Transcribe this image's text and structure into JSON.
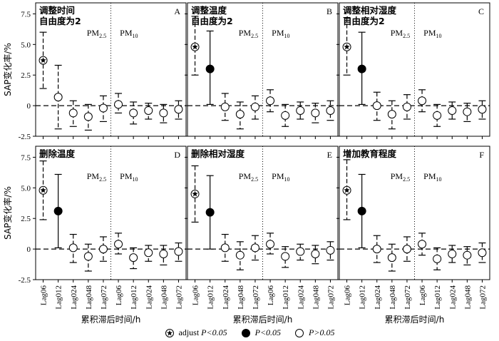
{
  "figure": {
    "xlabel": "累积滞后时间/h",
    "ylabel": "SAP变化率/%",
    "group_labels": {
      "pm25_prefix": "PM",
      "pm25_sub": "2.5",
      "pm10_prefix": "PM",
      "pm10_sub": "10"
    },
    "legend": [
      {
        "marker": "star-circle",
        "prefix": "adjust ",
        "text": "P<0.05"
      },
      {
        "marker": "filled-circle",
        "prefix": "",
        "text": "P<0.05"
      },
      {
        "marker": "open-circle",
        "prefix": "",
        "text": "P>0.05"
      }
    ]
  },
  "chart_data": [
    {
      "type": "scatter",
      "panel": "A",
      "title_lines": [
        "调整时间",
        "自由度为2"
      ],
      "categories": [
        "Lag06",
        "Lag012",
        "Lag024",
        "Lag048",
        "Lag072",
        "Lag06",
        "Lag012",
        "Lag024",
        "Lag048",
        "Lag072"
      ],
      "ylim": [
        -2.5,
        8.4
      ],
      "yticks": [
        "-2.5",
        "0",
        "2.5",
        "5.0",
        "7.5"
      ],
      "series": [
        {
          "name": "PM2.5",
          "points": [
            {
              "x": "Lag06",
              "y": 3.7,
              "low": 1.4,
              "high": 6.0,
              "sig": "adjust"
            },
            {
              "x": "Lag012",
              "y": 0.7,
              "low": -1.9,
              "high": 3.3,
              "sig": "ns"
            },
            {
              "x": "Lag024",
              "y": -0.6,
              "low": -1.7,
              "high": 0.4,
              "sig": "ns"
            },
            {
              "x": "Lag048",
              "y": -0.9,
              "low": -2.0,
              "high": 0.1,
              "sig": "ns"
            },
            {
              "x": "Lag072",
              "y": -0.2,
              "low": -1.3,
              "high": 0.8,
              "sig": "ns"
            }
          ]
        },
        {
          "name": "PM10",
          "points": [
            {
              "x": "Lag06",
              "y": 0.1,
              "low": -0.6,
              "high": 1.0,
              "sig": "ns"
            },
            {
              "x": "Lag012",
              "y": -0.6,
              "low": -1.5,
              "high": 0.3,
              "sig": "ns"
            },
            {
              "x": "Lag024",
              "y": -0.4,
              "low": -1.1,
              "high": 0.2,
              "sig": "ns"
            },
            {
              "x": "Lag048",
              "y": -0.6,
              "low": -1.4,
              "high": 0.1,
              "sig": "ns"
            },
            {
              "x": "Lag072",
              "y": -0.3,
              "low": -1.1,
              "high": 0.4,
              "sig": "ns"
            }
          ]
        }
      ]
    },
    {
      "type": "scatter",
      "panel": "B",
      "title_lines": [
        "调整温度",
        "自由度为2"
      ],
      "categories": [
        "Lag06",
        "Lag012",
        "Lag024",
        "Lag048",
        "Lag072",
        "Lag06",
        "Lag012",
        "Lag024",
        "Lag048",
        "Lag072"
      ],
      "ylim": [
        -2.5,
        8.4
      ],
      "yticks": [
        "-2.5",
        "0",
        "2.5",
        "5.0",
        "7.5"
      ],
      "series": [
        {
          "name": "PM2.5",
          "points": [
            {
              "x": "Lag06",
              "y": 4.8,
              "low": 2.5,
              "high": 7.3,
              "sig": "adjust"
            },
            {
              "x": "Lag012",
              "y": 3.0,
              "low": 0.1,
              "high": 6.1,
              "sig": "sig"
            },
            {
              "x": "Lag024",
              "y": -0.1,
              "low": -1.2,
              "high": 1.0,
              "sig": "ns"
            },
            {
              "x": "Lag048",
              "y": -0.7,
              "low": -1.9,
              "high": 0.3,
              "sig": "ns"
            },
            {
              "x": "Lag072",
              "y": -0.1,
              "low": -1.1,
              "high": 0.8,
              "sig": "ns"
            }
          ]
        },
        {
          "name": "PM10",
          "points": [
            {
              "x": "Lag06",
              "y": 0.4,
              "low": -0.5,
              "high": 1.3,
              "sig": "ns"
            },
            {
              "x": "Lag012",
              "y": -0.8,
              "low": -1.7,
              "high": 0.1,
              "sig": "ns"
            },
            {
              "x": "Lag024",
              "y": -0.4,
              "low": -1.1,
              "high": 0.3,
              "sig": "ns"
            },
            {
              "x": "Lag048",
              "y": -0.6,
              "low": -1.4,
              "high": 0.2,
              "sig": "ns"
            },
            {
              "x": "Lag072",
              "y": -0.4,
              "low": -1.2,
              "high": 0.4,
              "sig": "ns"
            }
          ]
        }
      ]
    },
    {
      "type": "scatter",
      "panel": "C",
      "title_lines": [
        "调整相对湿度",
        "自由度为2"
      ],
      "categories": [
        "Lag06",
        "Lag012",
        "Lag024",
        "Lag048",
        "Lag072",
        "Lag06",
        "Lag012",
        "Lag024",
        "Lag048",
        "Lag072"
      ],
      "ylim": [
        -2.5,
        8.4
      ],
      "yticks": [
        "-2.5",
        "0",
        "2.5",
        "5.0",
        "7.5"
      ],
      "series": [
        {
          "name": "PM2.5",
          "points": [
            {
              "x": "Lag06",
              "y": 4.8,
              "low": 2.5,
              "high": 7.2,
              "sig": "adjust"
            },
            {
              "x": "Lag012",
              "y": 3.0,
              "low": 0.1,
              "high": 6.0,
              "sig": "sig"
            },
            {
              "x": "Lag024",
              "y": 0.0,
              "low": -1.2,
              "high": 1.1,
              "sig": "ns"
            },
            {
              "x": "Lag048",
              "y": -0.7,
              "low": -1.9,
              "high": 0.4,
              "sig": "ns"
            },
            {
              "x": "Lag072",
              "y": -0.1,
              "low": -1.1,
              "high": 0.9,
              "sig": "ns"
            }
          ]
        },
        {
          "name": "PM10",
          "points": [
            {
              "x": "Lag06",
              "y": 0.4,
              "low": -0.5,
              "high": 1.3,
              "sig": "ns"
            },
            {
              "x": "Lag012",
              "y": -0.8,
              "low": -1.7,
              "high": 0.1,
              "sig": "ns"
            },
            {
              "x": "Lag024",
              "y": -0.4,
              "low": -1.1,
              "high": 0.3,
              "sig": "ns"
            },
            {
              "x": "Lag048",
              "y": -0.5,
              "low": -1.3,
              "high": 0.2,
              "sig": "ns"
            },
            {
              "x": "Lag072",
              "y": -0.3,
              "low": -1.1,
              "high": 0.4,
              "sig": "ns"
            }
          ]
        }
      ]
    },
    {
      "type": "scatter",
      "panel": "D",
      "title_lines": [
        "删除温度"
      ],
      "categories": [
        "Lag06",
        "Lag012",
        "Lag024",
        "Lag048",
        "Lag072",
        "Lag06",
        "Lag012",
        "Lag024",
        "Lag048",
        "Lag072"
      ],
      "ylim": [
        -2.5,
        8.4
      ],
      "yticks": [
        "-2.5",
        "0",
        "2.5",
        "5.0",
        "7.5"
      ],
      "series": [
        {
          "name": "PM2.5",
          "points": [
            {
              "x": "Lag06",
              "y": 4.8,
              "low": 2.4,
              "high": 7.2,
              "sig": "adjust"
            },
            {
              "x": "Lag012",
              "y": 3.1,
              "low": 0.1,
              "high": 6.1,
              "sig": "sig"
            },
            {
              "x": "Lag024",
              "y": 0.1,
              "low": -1.1,
              "high": 1.2,
              "sig": "ns"
            },
            {
              "x": "Lag048",
              "y": -0.6,
              "low": -1.8,
              "high": 0.4,
              "sig": "ns"
            },
            {
              "x": "Lag072",
              "y": 0.0,
              "low": -1.0,
              "high": 1.0,
              "sig": "ns"
            }
          ]
        },
        {
          "name": "PM10",
          "points": [
            {
              "x": "Lag06",
              "y": 0.4,
              "low": -0.4,
              "high": 1.3,
              "sig": "ns"
            },
            {
              "x": "Lag012",
              "y": -0.7,
              "low": -1.6,
              "high": 0.1,
              "sig": "ns"
            },
            {
              "x": "Lag024",
              "y": -0.3,
              "low": -1.0,
              "high": 0.3,
              "sig": "ns"
            },
            {
              "x": "Lag048",
              "y": -0.4,
              "low": -1.3,
              "high": 0.3,
              "sig": "ns"
            },
            {
              "x": "Lag072",
              "y": -0.2,
              "low": -1.0,
              "high": 0.5,
              "sig": "ns"
            }
          ]
        }
      ]
    },
    {
      "type": "scatter",
      "panel": "E",
      "title_lines": [
        "删除相对湿度"
      ],
      "categories": [
        "Lag06",
        "Lag012",
        "Lag024",
        "Lag048",
        "Lag072",
        "Lag06",
        "Lag012",
        "Lag024",
        "Lag048",
        "Lag072"
      ],
      "ylim": [
        -2.5,
        8.4
      ],
      "yticks": [
        "-2.5",
        "0",
        "2.5",
        "5.0",
        "7.5"
      ],
      "series": [
        {
          "name": "PM2.5",
          "points": [
            {
              "x": "Lag06",
              "y": 4.5,
              "low": 2.2,
              "high": 6.8,
              "sig": "adjust"
            },
            {
              "x": "Lag012",
              "y": 3.0,
              "low": 0.0,
              "high": 6.0,
              "sig": "sig"
            },
            {
              "x": "Lag024",
              "y": 0.1,
              "low": -1.0,
              "high": 1.2,
              "sig": "ns"
            },
            {
              "x": "Lag048",
              "y": -0.5,
              "low": -1.7,
              "high": 0.6,
              "sig": "ns"
            },
            {
              "x": "Lag072",
              "y": 0.1,
              "low": -0.9,
              "high": 1.1,
              "sig": "ns"
            }
          ]
        },
        {
          "name": "PM10",
          "points": [
            {
              "x": "Lag06",
              "y": 0.4,
              "low": -0.4,
              "high": 1.3,
              "sig": "ns"
            },
            {
              "x": "Lag012",
              "y": -0.6,
              "low": -1.5,
              "high": 0.2,
              "sig": "ns"
            },
            {
              "x": "Lag024",
              "y": -0.2,
              "low": -0.9,
              "high": 0.4,
              "sig": "ns"
            },
            {
              "x": "Lag048",
              "y": -0.4,
              "low": -1.2,
              "high": 0.3,
              "sig": "ns"
            },
            {
              "x": "Lag072",
              "y": -0.1,
              "low": -0.9,
              "high": 0.6,
              "sig": "ns"
            }
          ]
        }
      ]
    },
    {
      "type": "scatter",
      "panel": "F",
      "title_lines": [
        "增加教育程度"
      ],
      "categories": [
        "Lag06",
        "Lag012",
        "Lag024",
        "Lag048",
        "Lag072",
        "Lag06",
        "Lag012",
        "Lag024",
        "Lag048",
        "Lag072"
      ],
      "ylim": [
        -2.5,
        8.4
      ],
      "yticks": [
        "-2.5",
        "0",
        "2.5",
        "5.0",
        "7.5"
      ],
      "series": [
        {
          "name": "PM2.5",
          "points": [
            {
              "x": "Lag06",
              "y": 4.8,
              "low": 2.4,
              "high": 7.3,
              "sig": "adjust"
            },
            {
              "x": "Lag012",
              "y": 3.1,
              "low": 0.1,
              "high": 6.1,
              "sig": "sig"
            },
            {
              "x": "Lag024",
              "y": 0.0,
              "low": -1.1,
              "high": 1.1,
              "sig": "ns"
            },
            {
              "x": "Lag048",
              "y": -0.7,
              "low": -1.8,
              "high": 0.4,
              "sig": "ns"
            },
            {
              "x": "Lag072",
              "y": 0.0,
              "low": -1.0,
              "high": 1.0,
              "sig": "ns"
            }
          ]
        },
        {
          "name": "PM10",
          "points": [
            {
              "x": "Lag06",
              "y": 0.4,
              "low": -0.5,
              "high": 1.3,
              "sig": "ns"
            },
            {
              "x": "Lag012",
              "y": -0.8,
              "low": -1.7,
              "high": 0.1,
              "sig": "ns"
            },
            {
              "x": "Lag024",
              "y": -0.4,
              "low": -1.1,
              "high": 0.3,
              "sig": "ns"
            },
            {
              "x": "Lag048",
              "y": -0.5,
              "low": -1.3,
              "high": 0.2,
              "sig": "ns"
            },
            {
              "x": "Lag072",
              "y": -0.3,
              "low": -1.1,
              "high": 0.5,
              "sig": "ns"
            }
          ]
        }
      ]
    }
  ]
}
